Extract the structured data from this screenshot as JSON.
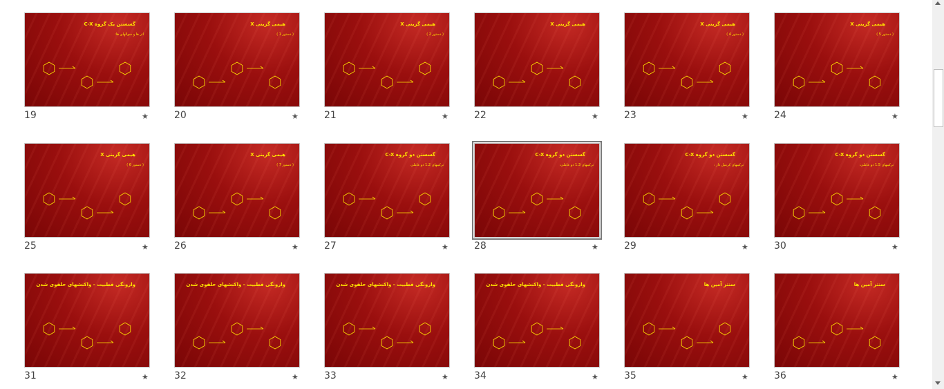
{
  "slides": [
    {
      "number": 19,
      "title": "گسستن یک گروه C-X",
      "subtitle": "اثر ها و سوالهای ها:"
    },
    {
      "number": 20,
      "title": "هیمی گزینی X",
      "subtitle": "( دستور 1 )"
    },
    {
      "number": 21,
      "title": "هیمی گزینی X",
      "subtitle": "( دستور 2 )"
    },
    {
      "number": 22,
      "title": "هیمی گزینی X"
    },
    {
      "number": 23,
      "title": "هیمی گزینی X",
      "subtitle": "( دستور 4 )"
    },
    {
      "number": 24,
      "title": "هیمی گزینی X",
      "subtitle": "( دستور 5 )"
    },
    {
      "number": 25,
      "title": "هیمی گزینی X",
      "subtitle": "( دستور 6 )"
    },
    {
      "number": 26,
      "title": "هیمی گزینی X",
      "subtitle": "( دستور 7 )"
    },
    {
      "number": 27,
      "title": "گسستن دو گروه C-X",
      "subtitle": "ترکیبهای 1،2 دو عاملی"
    },
    {
      "number": 28,
      "title": "گسستن دو گروه C-X",
      "subtitle": "ترکیبهای 1،3 دو عاملی:"
    },
    {
      "number": 29,
      "title": "گسستن دو گروه C-X",
      "subtitle": "ترکیبهای کربنیل دار :"
    },
    {
      "number": 30,
      "title": "گسستن دو گروه C-X",
      "subtitle": "ترکیبهای 1،5 دو عاملی:"
    },
    {
      "number": 31,
      "title": "وارونگی قطبیت - واکنشهای حلقوی شدن"
    },
    {
      "number": 32,
      "title": "وارونگی قطبیت - واکنشهای حلقوی شدن"
    },
    {
      "number": 33,
      "title": "وارونگی قطبیت - واکنشهای حلقوی شدن"
    },
    {
      "number": 34,
      "title": "وارونگی قطبیت - واکنشهای حلقوی شدن"
    },
    {
      "number": 35,
      "title": "سنتز آمین ها"
    },
    {
      "number": 36,
      "title": "سنتز آمین ها"
    }
  ],
  "selected_slide": 28
}
